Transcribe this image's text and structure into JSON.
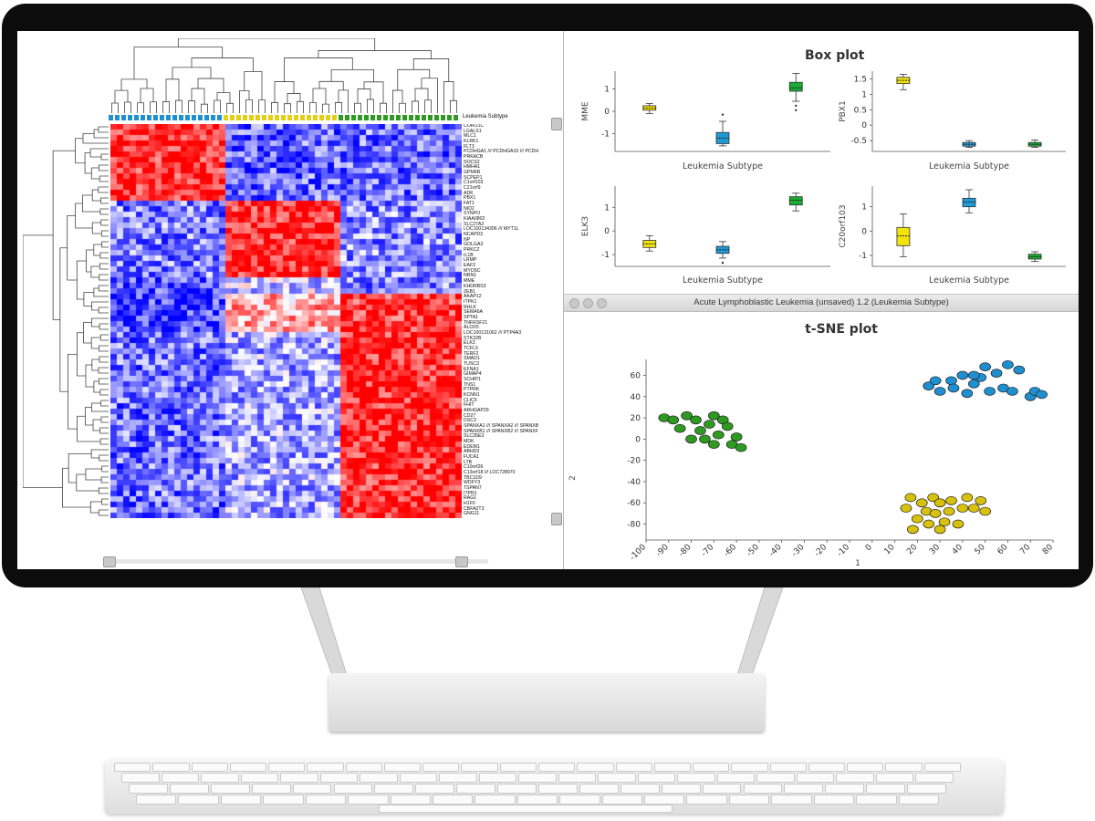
{
  "heatmap": {
    "column_annotation_label": "Leukemia Subtype",
    "genes": [
      "CORO1C",
      "LGALS1",
      "MLC1",
      "KLRK1",
      "FLT3",
      "PCDHGA1 /// PCDHGA10 /// PCDH",
      "PRKACB",
      "SOCS2",
      "HMHA1",
      "GPM6B",
      "SCPEP1",
      "C1orf103",
      "C21orf9",
      "ADK",
      "PBX1",
      "FAT1",
      "NID2",
      "SYNPO",
      "KIAA0802",
      "SLC27A2",
      "LOC100134306 /// MYT1L",
      "NCAPD3",
      "NP",
      "GOLGA3",
      "PRKCZ",
      "IL1B",
      "LRMP",
      "EAF2",
      "MYO5C",
      "NRN1",
      "MME",
      "KHDRBS3",
      "ZEB1",
      "AKAP12",
      "ITPK1",
      "RHLK",
      "SEMA6A",
      "SPTA1",
      "TNFRSF21",
      "ALOX5",
      "LOC100131062 /// PTP4A3",
      "STK32B",
      "ELK3",
      "TCFL5",
      "TERF2",
      "SMAD1",
      "TUSC3",
      "EFNA1",
      "GIMAP4",
      "SCHIP1",
      "TNS1",
      "PTPRK",
      "KCNN1",
      "CLIC5",
      "FHIT",
      "ARHGAP29",
      "CD27",
      "DSC3",
      "SPANXA1 /// SPANXA2 /// SPANXB",
      "SPANXB1 /// SPANXB2 /// SPANXF",
      "SLC35E3",
      "MDK",
      "EDEM1",
      "ABHD3",
      "FUCA1",
      "LTB",
      "C10orf26",
      "C13orf18 /// LOC728970",
      "TBC1D9",
      "WDFY3",
      "TSPAN7",
      "ITPR1",
      "RAG1",
      "H1F0",
      "CBFA2T3",
      "GNG11"
    ]
  },
  "boxplots": {
    "panel_title": "Box plot",
    "x_axis_title": "Leukemia Subtype",
    "chart_data": [
      {
        "type": "box",
        "ylabel": "MME",
        "ylim": [
          -1.8,
          1.8
        ],
        "yticks": [
          -1,
          0,
          1
        ],
        "boxes": [
          {
            "color": "#f2e30a",
            "q1": 0.05,
            "median": 0.15,
            "q3": 0.25,
            "min": -0.1,
            "max": 0.35,
            "outliers": []
          },
          {
            "color": "#1f9ad6",
            "q1": -1.45,
            "median": -1.2,
            "q3": -0.95,
            "min": -1.55,
            "max": -0.45,
            "outliers": [
              -0.15
            ]
          },
          {
            "color": "#1aab32",
            "q1": 0.9,
            "median": 1.05,
            "q3": 1.3,
            "min": 0.45,
            "max": 1.7,
            "outliers": [
              0.25,
              0.05
            ]
          }
        ]
      },
      {
        "type": "box",
        "ylabel": "PBX1",
        "ylim": [
          -0.85,
          1.75
        ],
        "yticks": [
          -0.5,
          0,
          0.5,
          1,
          1.5
        ],
        "boxes": [
          {
            "color": "#f2e30a",
            "q1": 1.35,
            "median": 1.45,
            "q3": 1.55,
            "min": 1.15,
            "max": 1.65,
            "outliers": []
          },
          {
            "color": "#1f9ad6",
            "q1": -0.68,
            "median": -0.62,
            "q3": -0.56,
            "min": -0.72,
            "max": -0.5,
            "outliers": []
          },
          {
            "color": "#1aab32",
            "q1": -0.68,
            "median": -0.62,
            "q3": -0.56,
            "min": -0.72,
            "max": -0.48,
            "outliers": []
          }
        ]
      },
      {
        "type": "box",
        "ylabel": "ELK3",
        "ylim": [
          -1.5,
          1.9
        ],
        "yticks": [
          -1,
          0,
          1
        ],
        "boxes": [
          {
            "color": "#f2e30a",
            "q1": -0.7,
            "median": -0.55,
            "q3": -0.4,
            "min": -0.85,
            "max": -0.2,
            "outliers": []
          },
          {
            "color": "#1f9ad6",
            "q1": -0.95,
            "median": -0.8,
            "q3": -0.65,
            "min": -1.15,
            "max": -0.45,
            "outliers": [
              -1.35
            ]
          },
          {
            "color": "#1aab32",
            "q1": 1.1,
            "median": 1.3,
            "q3": 1.45,
            "min": 0.85,
            "max": 1.6,
            "outliers": []
          }
        ]
      },
      {
        "type": "box",
        "ylabel": "C20orf103",
        "ylim": [
          -1.45,
          1.85
        ],
        "yticks": [
          -1,
          0,
          1
        ],
        "boxes": [
          {
            "color": "#f2e30a",
            "q1": -0.6,
            "median": -0.2,
            "q3": 0.15,
            "min": -1.05,
            "max": 0.7,
            "outliers": []
          },
          {
            "color": "#1f9ad6",
            "q1": 1.0,
            "median": 1.2,
            "q3": 1.35,
            "min": 0.75,
            "max": 1.7,
            "outliers": []
          },
          {
            "color": "#1aab32",
            "q1": -1.15,
            "median": -1.05,
            "q3": -0.95,
            "min": -1.25,
            "max": -0.85,
            "outliers": []
          }
        ]
      }
    ]
  },
  "tsne": {
    "window_title": "Acute Lymphoblastic Leukemia (unsaved) 1.2 (Leukemia Subtype)",
    "chart_data": {
      "type": "scatter",
      "title": "t-SNE plot",
      "xlabel": "1",
      "ylabel": "2",
      "xlim": [
        -100,
        80
      ],
      "ylim": [
        -95,
        75
      ],
      "xticks": [
        -100,
        -90,
        -80,
        -70,
        -60,
        -50,
        -40,
        -30,
        -20,
        -10,
        0,
        10,
        20,
        30,
        40,
        50,
        60,
        70,
        80
      ],
      "yticks": [
        -80,
        -60,
        -40,
        -20,
        0,
        20,
        40,
        60
      ],
      "series": [
        {
          "color": "#1f8fd0",
          "points": [
            [
              25,
              50
            ],
            [
              30,
              45
            ],
            [
              35,
              55
            ],
            [
              40,
              60
            ],
            [
              45,
              52
            ],
            [
              50,
              68
            ],
            [
              48,
              58
            ],
            [
              55,
              62
            ],
            [
              58,
              48
            ],
            [
              60,
              70
            ],
            [
              65,
              65
            ],
            [
              42,
              43
            ],
            [
              36,
              48
            ],
            [
              28,
              55
            ],
            [
              70,
              40
            ],
            [
              72,
              45
            ],
            [
              75,
              42
            ],
            [
              62,
              45
            ],
            [
              52,
              45
            ],
            [
              45,
              60
            ]
          ]
        },
        {
          "color": "#2e9a22",
          "points": [
            [
              -92,
              20
            ],
            [
              -88,
              18
            ],
            [
              -85,
              10
            ],
            [
              -82,
              22
            ],
            [
              -78,
              18
            ],
            [
              -76,
              8
            ],
            [
              -74,
              0
            ],
            [
              -72,
              14
            ],
            [
              -70,
              22
            ],
            [
              -68,
              4
            ],
            [
              -66,
              18
            ],
            [
              -64,
              12
            ],
            [
              -62,
              -5
            ],
            [
              -60,
              2
            ],
            [
              -58,
              -8
            ],
            [
              -80,
              0
            ],
            [
              -70,
              -5
            ]
          ]
        },
        {
          "color": "#d8c10c",
          "points": [
            [
              15,
              -65
            ],
            [
              17,
              -55
            ],
            [
              20,
              -75
            ],
            [
              22,
              -60
            ],
            [
              24,
              -68
            ],
            [
              25,
              -80
            ],
            [
              27,
              -55
            ],
            [
              28,
              -70
            ],
            [
              30,
              -60
            ],
            [
              32,
              -78
            ],
            [
              34,
              -68
            ],
            [
              35,
              -58
            ],
            [
              38,
              -80
            ],
            [
              40,
              -65
            ],
            [
              42,
              -55
            ],
            [
              45,
              -65
            ],
            [
              48,
              -58
            ],
            [
              50,
              -68
            ],
            [
              18,
              -85
            ],
            [
              30,
              -85
            ]
          ]
        }
      ]
    }
  }
}
